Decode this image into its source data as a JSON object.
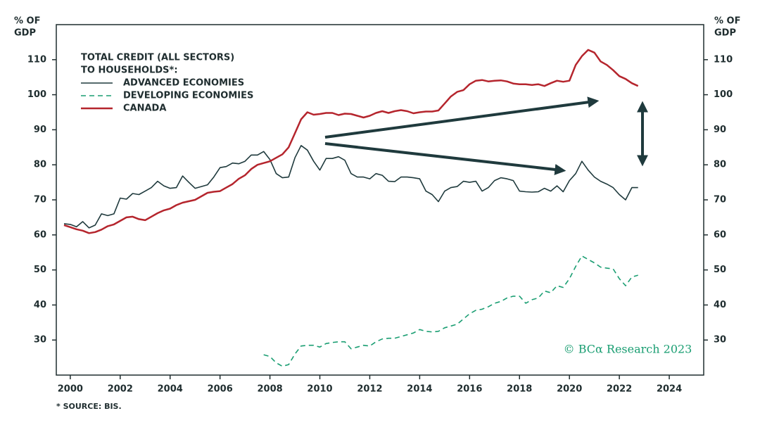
{
  "chart_data": {
    "type": "line",
    "ylabel_lines": [
      "% OF",
      "GDP"
    ],
    "legend_title": [
      "TOTAL CREDIT (ALL SECTORS)",
      "TO HOUSEHOLDS*:"
    ],
    "footnote": "* SOURCE: BIS.",
    "watermark": "© BCα Research 2023",
    "x": [
      1999.75,
      2000,
      2000.25,
      2000.5,
      2000.75,
      2001,
      2001.25,
      2001.5,
      2001.75,
      2002,
      2002.25,
      2002.5,
      2002.75,
      2003,
      2003.25,
      2003.5,
      2003.75,
      2004,
      2004.25,
      2004.5,
      2004.75,
      2005,
      2005.25,
      2005.5,
      2005.75,
      2006,
      2006.25,
      2006.5,
      2006.75,
      2007,
      2007.25,
      2007.5,
      2007.75,
      2008,
      2008.25,
      2008.5,
      2008.75,
      2009,
      2009.25,
      2009.5,
      2009.75,
      2010,
      2010.25,
      2010.5,
      2010.75,
      2011,
      2011.25,
      2011.5,
      2011.75,
      2012,
      2012.25,
      2012.5,
      2012.75,
      2013,
      2013.25,
      2013.5,
      2013.75,
      2014,
      2014.25,
      2014.5,
      2014.75,
      2015,
      2015.25,
      2015.5,
      2015.75,
      2016,
      2016.25,
      2016.5,
      2016.75,
      2017,
      2017.25,
      2017.5,
      2017.75,
      2018,
      2018.25,
      2018.5,
      2018.75,
      2019,
      2019.25,
      2019.5,
      2019.75,
      2020,
      2020.25,
      2020.5,
      2020.75,
      2021,
      2021.25,
      2021.5,
      2021.75,
      2022,
      2022.25,
      2022.5,
      2022.75
    ],
    "series": [
      {
        "name": "ADVANCED ECONOMIES",
        "color": "#1f3a3d",
        "dash": false,
        "values": [
          63.2,
          63,
          62.3,
          63.8,
          62,
          62.8,
          66,
          65.5,
          66,
          70.5,
          70.2,
          71.8,
          71.5,
          72.5,
          73.5,
          75.3,
          74,
          73.3,
          73.5,
          76.8,
          75,
          73.3,
          73.8,
          74.3,
          76.5,
          79.2,
          79.5,
          80.5,
          80.3,
          81,
          82.8,
          82.8,
          83.8,
          81.5,
          77.5,
          76.3,
          76.5,
          82,
          85.5,
          84.2,
          81,
          78.5,
          81.8,
          81.8,
          82.3,
          81.3,
          77.5,
          76.5,
          76.5,
          76,
          77.5,
          77,
          75.3,
          75.2,
          76.5,
          76.5,
          76.3,
          76,
          72.5,
          71.5,
          69.5,
          72.5,
          73.5,
          73.8,
          75.3,
          75,
          75.3,
          72.5,
          73.5,
          75.5,
          76.3,
          76,
          75.5,
          72.5,
          72.3,
          72.2,
          72.3,
          73.3,
          72.5,
          74,
          72.3,
          75.5,
          77.5,
          81,
          78.5,
          76.5,
          75.3,
          74.5,
          73.5,
          71.5,
          70,
          73.5,
          73.5
        ]
      },
      {
        "name": "DEVELOPING ECONOMIES",
        "color": "#1a9e72",
        "dash": true,
        "values": [
          null,
          null,
          null,
          null,
          null,
          null,
          null,
          null,
          null,
          null,
          null,
          null,
          null,
          null,
          null,
          null,
          null,
          null,
          null,
          null,
          null,
          null,
          null,
          null,
          null,
          null,
          null,
          null,
          null,
          null,
          null,
          null,
          25.8,
          25.3,
          23.5,
          22.5,
          23,
          26,
          28.3,
          28.5,
          28.5,
          28,
          29,
          29.3,
          29.5,
          29.5,
          27.5,
          28,
          28.5,
          28.3,
          29.5,
          30.3,
          30.5,
          30.5,
          31,
          31.5,
          32,
          33,
          32.5,
          32.3,
          32.5,
          33.5,
          34,
          34.5,
          36,
          37.5,
          38.5,
          38.8,
          39.5,
          40.5,
          41,
          42,
          42.5,
          42.5,
          40.5,
          41.5,
          42,
          44,
          43.5,
          45.5,
          45,
          47.5,
          51,
          54,
          53,
          52,
          50.8,
          50.5,
          50.3,
          47.5,
          45.5,
          48,
          48.5
        ]
      },
      {
        "name": "CANADA",
        "color": "#b5252d",
        "dash": false,
        "values": [
          62.8,
          62.2,
          61.6,
          61.2,
          60.5,
          60.8,
          61.5,
          62.5,
          63,
          64,
          65,
          65.2,
          64.5,
          64.2,
          65.2,
          66.2,
          67,
          67.5,
          68.5,
          69.2,
          69.6,
          70,
          71,
          72,
          72.3,
          72.5,
          73.5,
          74.5,
          76,
          77,
          78.8,
          80,
          80.5,
          81,
          82,
          83,
          85,
          89,
          93,
          95,
          94.3,
          94.5,
          94.8,
          94.8,
          94.2,
          94.6,
          94.5,
          94,
          93.5,
          94,
          94.8,
          95.3,
          94.8,
          95.3,
          95.6,
          95.3,
          94.7,
          95,
          95.2,
          95.2,
          95.5,
          97.5,
          99.5,
          100.8,
          101.3,
          103,
          104,
          104.2,
          103.8,
          104,
          104.1,
          103.8,
          103.2,
          103,
          103,
          102.8,
          103,
          102.5,
          103.3,
          104,
          103.7,
          104,
          108.5,
          111,
          112.8,
          112,
          109.5,
          108.5,
          107,
          105.3,
          104.5,
          103.3,
          102.5
        ]
      }
    ],
    "xlim": [
      1999.44,
      2025.38
    ],
    "xticks": [
      2000,
      2002,
      2004,
      2006,
      2008,
      2010,
      2012,
      2014,
      2016,
      2018,
      2020,
      2022,
      2024
    ],
    "ylim": [
      20,
      120
    ],
    "yticks": [
      30,
      40,
      50,
      60,
      70,
      80,
      90,
      100,
      110
    ],
    "y2lim": [
      20,
      120
    ],
    "y2ticks": [
      30,
      40,
      50,
      60,
      70,
      80,
      90,
      100,
      110
    ],
    "grid": false
  }
}
